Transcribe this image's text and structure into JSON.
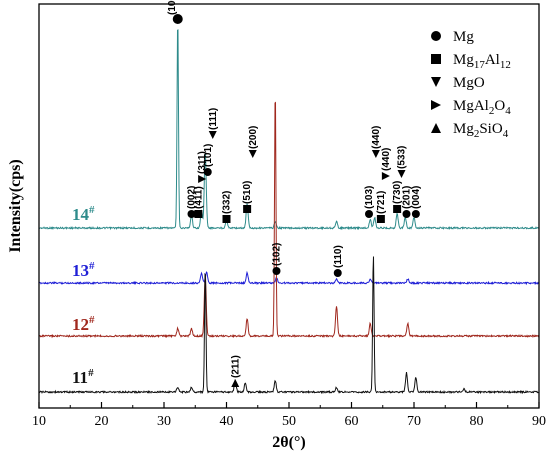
{
  "chart_data": {
    "type": "line",
    "xlabel": "2θ(°)",
    "ylabel": "Intensity(cps)",
    "xlim": [
      10,
      90
    ],
    "x_ticks": [
      "10",
      "20",
      "30",
      "40",
      "50",
      "60",
      "70",
      "80",
      "90"
    ],
    "grid": false,
    "legend_position": "top-right",
    "legend": [
      {
        "marker": "circle",
        "label": "Mg"
      },
      {
        "marker": "square",
        "label": "Mg",
        "sub": "17",
        "mid": "Al",
        "sub2": "12"
      },
      {
        "marker": "triangle-down",
        "label": "MgO"
      },
      {
        "marker": "triangle-right",
        "label": "MgAl",
        "sub": "2",
        "mid": "O",
        "sub2": "4"
      },
      {
        "marker": "triangle-up",
        "label": "Mg",
        "sub": "2",
        "mid": "SiO",
        "sub2": "4"
      }
    ],
    "series": [
      {
        "name": "14",
        "color": "#2e8b8b",
        "baseline": 0.0,
        "peaks": [
          [
            32.2,
            1.0
          ],
          [
            34.4,
            0.06
          ],
          [
            36.0,
            0.08
          ],
          [
            36.6,
            0.36
          ],
          [
            40.0,
            0.04
          ],
          [
            43.3,
            0.12
          ],
          [
            47.8,
            0.03
          ],
          [
            57.6,
            0.03
          ],
          [
            63.0,
            0.04
          ],
          [
            63.7,
            0.05
          ],
          [
            67.3,
            0.07
          ],
          [
            68.6,
            0.05
          ],
          [
            70.0,
            0.05
          ]
        ]
      },
      {
        "name": "13",
        "color": "#1f1fd6",
        "baseline": 0.0,
        "peaks": [
          [
            36.0,
            0.07
          ],
          [
            36.8,
            0.08
          ],
          [
            43.3,
            0.07
          ],
          [
            48.0,
            0.04
          ],
          [
            57.6,
            0.03
          ],
          [
            63.0,
            0.03
          ],
          [
            69.0,
            0.03
          ]
        ]
      },
      {
        "name": "12",
        "color": "#a0281e",
        "baseline": 0.0,
        "peaks": [
          [
            32.2,
            0.03
          ],
          [
            34.4,
            0.03
          ],
          [
            36.6,
            0.24
          ],
          [
            43.3,
            0.07
          ],
          [
            47.8,
            1.0
          ],
          [
            57.6,
            0.12
          ],
          [
            63.0,
            0.05
          ],
          [
            69.0,
            0.05
          ]
        ]
      },
      {
        "name": "11",
        "color": "#111111",
        "baseline": 0.0,
        "peaks": [
          [
            32.2,
            0.03
          ],
          [
            34.4,
            0.03
          ],
          [
            36.6,
            0.78
          ],
          [
            41.4,
            0.07
          ],
          [
            43.0,
            0.06
          ],
          [
            47.8,
            0.07
          ],
          [
            57.6,
            0.03
          ],
          [
            63.5,
            0.86
          ],
          [
            68.8,
            0.12
          ],
          [
            70.3,
            0.09
          ],
          [
            78.0,
            0.02
          ]
        ]
      }
    ],
    "annotations": [
      {
        "text": "(100)",
        "x": 32.2,
        "series": "14",
        "marker": "circle"
      },
      {
        "text": "(002)",
        "x": 34.4,
        "series": "14",
        "marker": "circle"
      },
      {
        "text": "(411)",
        "x": 35.6,
        "series": "14",
        "marker": "square"
      },
      {
        "text": "(311)",
        "x": 36.0,
        "series": "14",
        "marker": "triangle-right"
      },
      {
        "text": "(101)",
        "x": 36.6,
        "series": "14",
        "marker": "circle"
      },
      {
        "text": "(111)",
        "x": 37.2,
        "series": "14",
        "marker": "triangle-down"
      },
      {
        "text": "(332)",
        "x": 40.0,
        "series": "14",
        "marker": "square"
      },
      {
        "text": "(510)",
        "x": 43.3,
        "series": "14",
        "marker": "square"
      },
      {
        "text": "(200)",
        "x": 44.2,
        "series": "14",
        "marker": "triangle-down"
      },
      {
        "text": "(103)",
        "x": 63.0,
        "series": "14",
        "marker": "circle"
      },
      {
        "text": "(721)",
        "x": 64.6,
        "series": "14",
        "marker": "square"
      },
      {
        "text": "(440)",
        "x": 63.8,
        "series": "14",
        "marker": "triangle-down"
      },
      {
        "text": "(440)",
        "x": 65.6,
        "series": "14",
        "marker": "triangle-right"
      },
      {
        "text": "(730)",
        "x": 67.3,
        "series": "14",
        "marker": "square"
      },
      {
        "text": "(533)",
        "x": 68.2,
        "series": "14",
        "marker": "triangle-down"
      },
      {
        "text": "(201)",
        "x": 68.6,
        "series": "14",
        "marker": "circle"
      },
      {
        "text": "(004)",
        "x": 70.3,
        "series": "14",
        "marker": "circle"
      },
      {
        "text": "(102)",
        "x": 48.0,
        "series": "13",
        "marker": "circle"
      },
      {
        "text": "(110)",
        "x": 57.8,
        "series": "13",
        "marker": "circle"
      },
      {
        "text": "(211)",
        "x": 41.4,
        "series": "11",
        "marker": "triangle-up"
      }
    ]
  }
}
